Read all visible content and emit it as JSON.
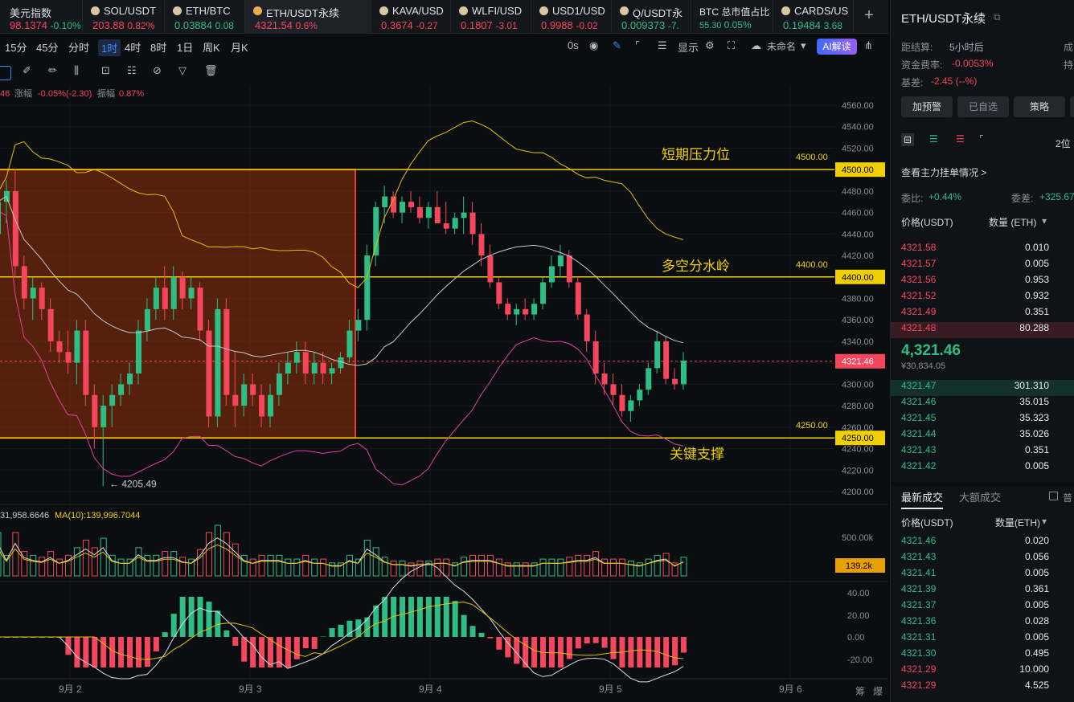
{
  "tabs": [
    {
      "name": "美元指数",
      "price": "98.1374",
      "change": "-0.10%",
      "dir": "red"
    },
    {
      "name": "SOL/USDT",
      "price": "203.88",
      "change": "0.82%",
      "dir": "red"
    },
    {
      "name": "ETH/BTC",
      "price": "0.03884",
      "change": "0.08",
      "dir": "green"
    },
    {
      "name": "ETH/USDT永续",
      "price": "4321.54",
      "change": "0.6%",
      "dir": "red"
    },
    {
      "name": "KAVA/USD",
      "price": "0.3674",
      "change": "-0.27",
      "dir": "red"
    },
    {
      "name": "WLFI/USD",
      "price": "0.1807",
      "change": "-3.01",
      "dir": "red"
    },
    {
      "name": "USD1/USD",
      "price": "0.9988",
      "change": "-0.02",
      "dir": "red"
    },
    {
      "name": "Q/USDT永",
      "price": "0.009373",
      "change": "-7.",
      "dir": "green"
    },
    {
      "name": "BTC 总市值占比",
      "price": "55.30",
      "change": "0.05%",
      "dir": "green"
    },
    {
      "name": "CARDS/US",
      "price": "0.19484",
      "change": "3.68",
      "dir": "green"
    }
  ],
  "add_tab": "+",
  "timeframes": [
    "15分",
    "45分",
    "分时",
    "1时",
    "4时",
    "8时",
    "1日",
    "周K",
    "月K"
  ],
  "selected_timeframe": "1时",
  "toolbar": {
    "countdown": "0s",
    "display": "显示",
    "unnamed": "未命名",
    "ai": "AI解读"
  },
  "stats_line": {
    "prefix": "46",
    "amp_label": "涨幅",
    "amp": "-0.05%(-2.30)",
    "range_label": "振幅",
    "range": "0.87%"
  },
  "volume_line": {
    "prefix": "31,958.6646",
    "ma": "MA(10):139,996.7044"
  },
  "annotations": {
    "resist": "短期压力位",
    "mid": "多空分水岭",
    "support": "关键支撑",
    "low": "← 4205.49",
    "lv4500": "4500.00",
    "lv4400": "4400.00",
    "lv4250": "4250.00"
  },
  "price_axis": [
    "4560.00",
    "4540.00",
    "4520.00",
    "4500.00",
    "4480.00",
    "4460.00",
    "4440.00",
    "4420.00",
    "4400.00",
    "4380.00",
    "4360.00",
    "4340.00",
    "4320.00",
    "4300.00",
    "4280.00",
    "4260.00",
    "4240.00",
    "4220.00",
    "4200.00"
  ],
  "price_tags": {
    "p4500": "4500.00",
    "p4400": "4400.00",
    "p4321": "4321.46",
    "p4250": "4250.00"
  },
  "vol_axis": {
    "top": "500.00k",
    "tag": "139.2k"
  },
  "macd_axis": [
    "40.00",
    "20.00",
    "0.00",
    "-20.00"
  ],
  "date_axis": [
    "9月 2",
    "9月 3",
    "9月 4",
    "9月 5",
    "9月 6"
  ],
  "bottom_right": [
    "筹",
    "爆"
  ],
  "colors": {
    "up": "#2ebd85",
    "down": "#f6465d",
    "level": "#f0d000",
    "box": "#e53935",
    "accent": "#3d8bff"
  },
  "chart_data": {
    "type": "candlestick",
    "ylim": [
      4195,
      4570
    ],
    "candles": [
      [
        4440,
        4480,
        4380,
        4470
      ],
      [
        4470,
        4490,
        4450,
        4480
      ],
      [
        4480,
        4500,
        4400,
        4410
      ],
      [
        4410,
        4420,
        4370,
        4380
      ],
      [
        4380,
        4400,
        4360,
        4390
      ],
      [
        4390,
        4395,
        4360,
        4370
      ],
      [
        4370,
        4380,
        4330,
        4340
      ],
      [
        4340,
        4350,
        4320,
        4330
      ],
      [
        4330,
        4350,
        4310,
        4320
      ],
      [
        4320,
        4360,
        4300,
        4350
      ],
      [
        4350,
        4360,
        4280,
        4290
      ],
      [
        4290,
        4300,
        4240,
        4260
      ],
      [
        4260,
        4290,
        4205,
        4280
      ],
      [
        4280,
        4300,
        4260,
        4290
      ],
      [
        4290,
        4310,
        4280,
        4300
      ],
      [
        4300,
        4320,
        4290,
        4310
      ],
      [
        4310,
        4360,
        4300,
        4350
      ],
      [
        4350,
        4380,
        4340,
        4370
      ],
      [
        4370,
        4400,
        4360,
        4390
      ],
      [
        4390,
        4410,
        4360,
        4370
      ],
      [
        4370,
        4410,
        4360,
        4400
      ],
      [
        4400,
        4405,
        4370,
        4380
      ],
      [
        4380,
        4400,
        4370,
        4390
      ],
      [
        4390,
        4395,
        4340,
        4350
      ],
      [
        4350,
        4360,
        4260,
        4270
      ],
      [
        4270,
        4380,
        4260,
        4370
      ],
      [
        4370,
        4380,
        4280,
        4290
      ],
      [
        4290,
        4330,
        4260,
        4280
      ],
      [
        4280,
        4310,
        4270,
        4300
      ],
      [
        4300,
        4310,
        4280,
        4290
      ],
      [
        4290,
        4300,
        4260,
        4270
      ],
      [
        4270,
        4300,
        4260,
        4290
      ],
      [
        4290,
        4320,
        4280,
        4310
      ],
      [
        4310,
        4330,
        4300,
        4320
      ],
      [
        4320,
        4340,
        4310,
        4330
      ],
      [
        4330,
        4340,
        4300,
        4310
      ],
      [
        4310,
        4330,
        4300,
        4320
      ],
      [
        4320,
        4330,
        4300,
        4310
      ],
      [
        4310,
        4320,
        4300,
        4315
      ],
      [
        4315,
        4330,
        4310,
        4325
      ],
      [
        4325,
        4360,
        4320,
        4350
      ],
      [
        4350,
        4370,
        4340,
        4360
      ],
      [
        4360,
        4430,
        4350,
        4420
      ],
      [
        4420,
        4470,
        4410,
        4465
      ],
      [
        4465,
        4485,
        4450,
        4475
      ],
      [
        4475,
        4480,
        4455,
        4460
      ],
      [
        4460,
        4475,
        4450,
        4470
      ],
      [
        4470,
        4480,
        4460,
        4465
      ],
      [
        4465,
        4475,
        4450,
        4455
      ],
      [
        4455,
        4470,
        4445,
        4465
      ],
      [
        4465,
        4480,
        4450,
        4450
      ],
      [
        4450,
        4470,
        4440,
        4445
      ],
      [
        4445,
        4460,
        4440,
        4455
      ],
      [
        4455,
        4475,
        4440,
        4460
      ],
      [
        4460,
        4470,
        4430,
        4440
      ],
      [
        4440,
        4450,
        4410,
        4420
      ],
      [
        4420,
        4430,
        4390,
        4395
      ],
      [
        4395,
        4400,
        4370,
        4375
      ],
      [
        4375,
        4380,
        4360,
        4365
      ],
      [
        4365,
        4375,
        4355,
        4370
      ],
      [
        4370,
        4380,
        4360,
        4365
      ],
      [
        4365,
        4380,
        4360,
        4375
      ],
      [
        4375,
        4400,
        4370,
        4395
      ],
      [
        4395,
        4420,
        4390,
        4410
      ],
      [
        4410,
        4430,
        4400,
        4420
      ],
      [
        4420,
        4425,
        4390,
        4395
      ],
      [
        4395,
        4400,
        4360,
        4365
      ],
      [
        4365,
        4370,
        4330,
        4340
      ],
      [
        4340,
        4350,
        4300,
        4310
      ],
      [
        4310,
        4320,
        4290,
        4300
      ],
      [
        4300,
        4310,
        4280,
        4290
      ],
      [
        4290,
        4300,
        4270,
        4275
      ],
      [
        4275,
        4290,
        4265,
        4285
      ],
      [
        4285,
        4300,
        4280,
        4295
      ],
      [
        4295,
        4320,
        4290,
        4315
      ],
      [
        4315,
        4350,
        4310,
        4340
      ],
      [
        4340,
        4345,
        4300,
        4305
      ],
      [
        4305,
        4315,
        4295,
        4300
      ],
      [
        4300,
        4330,
        4295,
        4322
      ]
    ],
    "x_dates": [
      "9月 2",
      "9月 3",
      "9月 4",
      "9月 5",
      "9月 6"
    ],
    "levels": [
      {
        "label": "短期压力位",
        "value": 4500
      },
      {
        "label": "多空分水岭",
        "value": 4400
      },
      {
        "label": "关键支撑",
        "value": 4250
      }
    ],
    "last_price": 4321.46,
    "low_marker": 4205.49,
    "volume_ylim": [
      0,
      560000
    ],
    "volume_ma10": 139996.7044,
    "macd_ylim": [
      -30,
      45
    ]
  },
  "right": {
    "title": "ETH/USDT永续",
    "settle_label": "距结算:",
    "settle": "5小时后",
    "funding_label": "资金费率:",
    "funding": "-0.0053%",
    "basis_label": "基差:",
    "basis": "-2.45 (--%)",
    "col_a": "成",
    "col_b": "持",
    "buttons": [
      "加预警",
      "已自选",
      "策略"
    ],
    "precision": "2位",
    "main_orders": "查看主力挂单情况 >",
    "bid_ratio_label": "委比:",
    "bid_ratio": "+0.44%",
    "bid_diff_label": "委差:",
    "bid_diff": "+325.67",
    "ob_price_head": "价格(USDT)",
    "ob_qty_head": "数量 (ETH)",
    "asks": [
      [
        "4321.58",
        "0.010"
      ],
      [
        "4321.57",
        "0.005"
      ],
      [
        "4321.56",
        "0.953"
      ],
      [
        "4321.52",
        "0.932"
      ],
      [
        "4321.49",
        "0.351"
      ],
      [
        "4321.48",
        "80.288"
      ]
    ],
    "last": "4,321.46",
    "last_usd": "¥30,834.05",
    "bids": [
      [
        "4321.47",
        "301.310"
      ],
      [
        "4321.46",
        "35.015"
      ],
      [
        "4321.45",
        "35.323"
      ],
      [
        "4321.44",
        "35.026"
      ],
      [
        "4321.43",
        "0.351"
      ],
      [
        "4321.42",
        "0.005"
      ]
    ],
    "trades_tab": "最新成交",
    "big_tab": "大额成交",
    "normal": "普",
    "tr_price_head": "价格(USDT)",
    "tr_qty_head": "数量(ETH)",
    "trades": [
      [
        "4321.46",
        "0.020",
        "green"
      ],
      [
        "4321.43",
        "0.056",
        "green"
      ],
      [
        "4321.41",
        "0.005",
        "green"
      ],
      [
        "4321.39",
        "0.361",
        "green"
      ],
      [
        "4321.37",
        "0.005",
        "green"
      ],
      [
        "4321.36",
        "0.028",
        "green"
      ],
      [
        "4321.31",
        "0.005",
        "green"
      ],
      [
        "4321.30",
        "0.495",
        "green"
      ],
      [
        "4321.29",
        "10.000",
        "red"
      ],
      [
        "4321.29",
        "4.525",
        "red"
      ]
    ]
  }
}
